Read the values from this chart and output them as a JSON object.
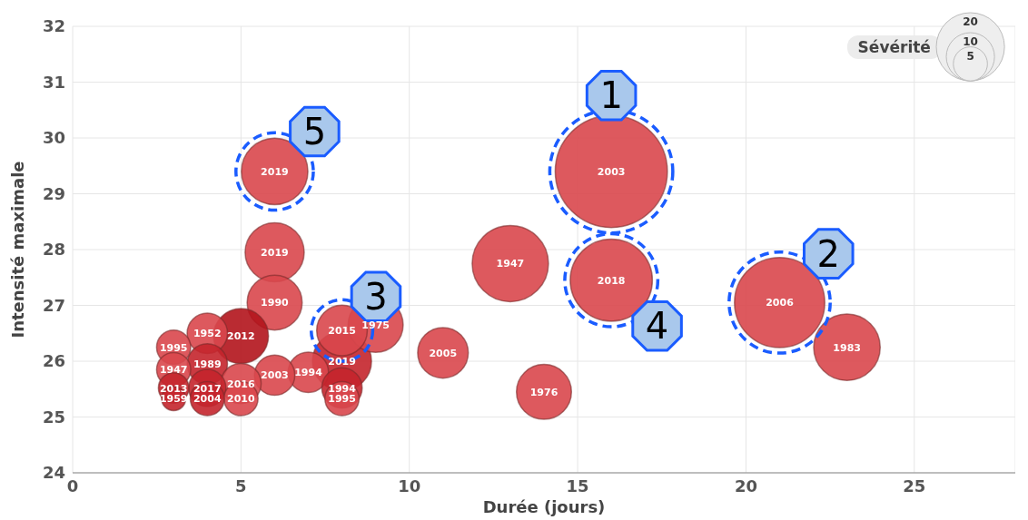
{
  "chart_data": {
    "type": "bubble",
    "xlabel": "Durée (jours)",
    "ylabel": "Intensité maximale",
    "legend_title": "Sévérité",
    "grid": true,
    "xlim": [
      0,
      28
    ],
    "xticks": [
      0,
      5,
      10,
      15,
      20,
      25
    ],
    "ylim": [
      24,
      32
    ],
    "yticks": [
      24,
      25,
      26,
      27,
      28,
      29,
      30,
      31,
      32
    ],
    "size_legend": [
      5,
      10,
      20
    ],
    "series": [
      {
        "name": "2003",
        "color": "#d9474d",
        "x": [
          16
        ],
        "values": [
          29.4
        ],
        "sizes": [
          54
        ]
      },
      {
        "name": "2006",
        "color": "#d9474d",
        "x": [
          21
        ],
        "values": [
          27.05
        ],
        "sizes": [
          35
        ]
      },
      {
        "name": "2018",
        "color": "#d9474d",
        "x": [
          16
        ],
        "values": [
          27.45
        ],
        "sizes": [
          29
        ]
      },
      {
        "name": "1947",
        "color": "#d9474d",
        "x": [
          13
        ],
        "values": [
          27.75
        ],
        "sizes": [
          25
        ]
      },
      {
        "name": "2019",
        "color": "#d9474d",
        "x": [
          6
        ],
        "values": [
          29.4
        ],
        "sizes": [
          19
        ]
      },
      {
        "name": "1983",
        "color": "#d9474d",
        "x": [
          23
        ],
        "values": [
          26.25
        ],
        "sizes": [
          19
        ]
      },
      {
        "name": "2019",
        "color": "#d9474d",
        "x": [
          6
        ],
        "values": [
          27.95
        ],
        "sizes": [
          15
        ]
      },
      {
        "name": "2019",
        "color": "#c4252c",
        "x": [
          8
        ],
        "values": [
          26.0
        ],
        "sizes": [
          15
        ]
      },
      {
        "name": "1975",
        "color": "#d9474d",
        "x": [
          9
        ],
        "values": [
          26.65
        ],
        "sizes": [
          13
        ]
      },
      {
        "name": "1976",
        "color": "#d9474d",
        "x": [
          14
        ],
        "values": [
          25.45
        ],
        "sizes": [
          13
        ]
      },
      {
        "name": "1990",
        "color": "#d9474d",
        "x": [
          6
        ],
        "values": [
          27.05
        ],
        "sizes": [
          13
        ]
      },
      {
        "name": "2012",
        "color": "#b3141c",
        "x": [
          5
        ],
        "values": [
          26.45
        ],
        "sizes": [
          13
        ]
      },
      {
        "name": "2005",
        "color": "#d9474d",
        "x": [
          11
        ],
        "values": [
          26.15
        ],
        "sizes": [
          11
        ]
      },
      {
        "name": "2015",
        "color": "#d9474d",
        "x": [
          8
        ],
        "values": [
          26.55
        ],
        "sizes": [
          11
        ]
      },
      {
        "name": "1994",
        "color": "#d9474d",
        "x": [
          7
        ],
        "values": [
          25.8
        ],
        "sizes": [
          7
        ]
      },
      {
        "name": "2003",
        "color": "#d9474d",
        "x": [
          6
        ],
        "values": [
          25.75
        ],
        "sizes": [
          7
        ]
      },
      {
        "name": "1952",
        "color": "#d9474d",
        "x": [
          4
        ],
        "values": [
          26.5
        ],
        "sizes": [
          7
        ]
      },
      {
        "name": "1989",
        "color": "#c4252c",
        "x": [
          4
        ],
        "values": [
          25.95
        ],
        "sizes": [
          7
        ]
      },
      {
        "name": "2016",
        "color": "#d9474d",
        "x": [
          5
        ],
        "values": [
          25.6
        ],
        "sizes": [
          7
        ]
      },
      {
        "name": "1994",
        "color": "#c4252c",
        "x": [
          8
        ],
        "values": [
          25.52
        ],
        "sizes": [
          7
        ]
      },
      {
        "name": "2017",
        "color": "#c4252c",
        "x": [
          4
        ],
        "values": [
          25.52
        ],
        "sizes": [
          6
        ]
      },
      {
        "name": "2010",
        "color": "#d9474d",
        "x": [
          5
        ],
        "values": [
          25.33
        ],
        "sizes": [
          5
        ]
      },
      {
        "name": "2004",
        "color": "#c4252c",
        "x": [
          4
        ],
        "values": [
          25.33
        ],
        "sizes": [
          5
        ]
      },
      {
        "name": "1995",
        "color": "#d9474d",
        "x": [
          8
        ],
        "values": [
          25.33
        ],
        "sizes": [
          5
        ]
      },
      {
        "name": "1995",
        "color": "#d9474d",
        "x": [
          3
        ],
        "values": [
          26.25
        ],
        "sizes": [
          5
        ]
      },
      {
        "name": "1947",
        "color": "#d9474d",
        "x": [
          3
        ],
        "values": [
          25.85
        ],
        "sizes": [
          5
        ]
      },
      {
        "name": "2013",
        "color": "#c4252c",
        "x": [
          3
        ],
        "values": [
          25.52
        ],
        "sizes": [
          4
        ]
      },
      {
        "name": "1959",
        "color": "#c4252c",
        "x": [
          3
        ],
        "values": [
          25.33
        ],
        "sizes": [
          2.5
        ]
      }
    ],
    "annotations": [
      {
        "text": "1",
        "x": 16,
        "y": 29.4
      },
      {
        "text": "2",
        "x": 21,
        "y": 27.05
      },
      {
        "text": "3",
        "x": 8,
        "y": 26.55
      },
      {
        "text": "4",
        "x": 16,
        "y": 27.45
      },
      {
        "text": "5",
        "x": 6,
        "y": 29.4
      }
    ]
  }
}
